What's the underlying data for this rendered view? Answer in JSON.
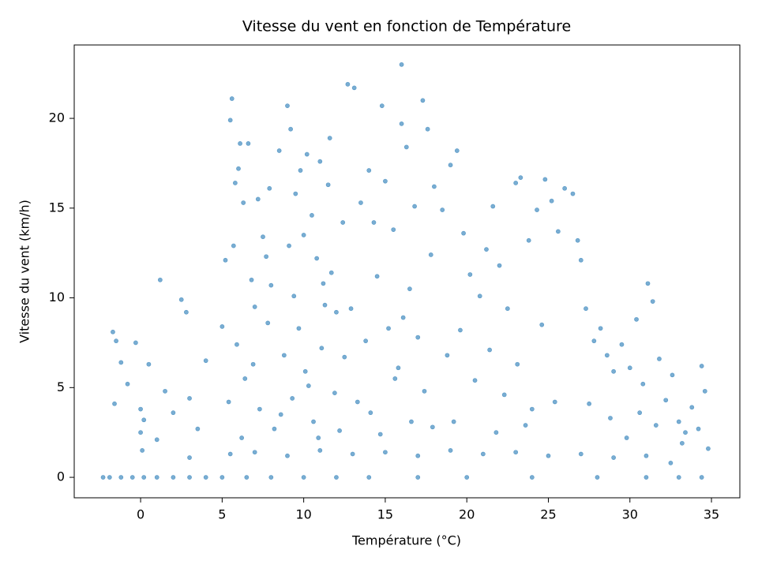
{
  "chart_data": {
    "type": "scatter",
    "title": "Vitesse du vent en fonction de Température",
    "x_label": "Température (°C)",
    "y_label": "Vitesse du vent (km/h)",
    "color": "#1f77b4",
    "grid": false,
    "xlim": [
      -4.07,
      36.74
    ],
    "ylim": [
      -1.14,
      24.09
    ],
    "xticks": [
      0,
      5,
      10,
      15,
      20,
      25,
      30,
      35
    ],
    "yticks": [
      0,
      5,
      10,
      15,
      20
    ],
    "x": [
      -2.3,
      -1.9,
      -1.2,
      -0.5,
      0.2,
      1,
      2,
      3,
      4,
      5,
      6.5,
      8,
      10,
      12,
      14,
      17,
      20,
      24,
      28,
      31,
      33,
      34.4,
      5.5,
      7,
      9,
      11,
      13,
      15,
      17,
      19,
      21,
      23,
      25,
      27,
      29,
      31,
      32.5,
      3,
      -1.7,
      -1.5,
      -1.2,
      -0.8,
      -0.3,
      0,
      0,
      0.2,
      0.5,
      1,
      1.2,
      1.5,
      2,
      2.5,
      3,
      3.5,
      4,
      -1.6,
      0.1,
      2.8,
      5.2,
      5.5,
      5.6,
      5.7,
      5.8,
      6,
      6.1,
      6.3,
      6.6,
      6.8,
      7,
      7.2,
      7.5,
      7.8,
      8,
      5.9,
      6.4,
      7.3,
      5.4,
      6.9,
      7.7,
      8.2,
      5,
      6.2,
      7.9,
      8.5,
      9,
      9.2,
      9.5,
      9.8,
      10,
      10.2,
      10.5,
      10.8,
      11,
      11.2,
      11.5,
      11.6,
      12,
      8.8,
      9.3,
      9.7,
      10.1,
      10.6,
      11.1,
      11.7,
      12.2,
      8.6,
      9.4,
      10.3,
      11.3,
      11.9,
      9.1,
      10.9,
      12.4,
      12.7,
      13.1,
      13.5,
      14,
      14.3,
      14.8,
      15,
      15.5,
      16,
      16,
      16.3,
      16.8,
      17.3,
      17.6,
      18,
      12.9,
      13.8,
      14.5,
      15.2,
      15.8,
      16.5,
      17,
      17.8,
      13.3,
      14.1,
      15.6,
      16.6,
      17.4,
      12.5,
      14.7,
      16.1,
      17.9,
      18.5,
      19,
      19.4,
      19.8,
      20.2,
      20.8,
      21.2,
      21.6,
      22,
      22.5,
      23,
      23.3,
      23.8,
      24.3,
      24.8,
      25.2,
      25.6,
      26,
      18.8,
      19.6,
      20.5,
      21.4,
      22.3,
      23.1,
      24,
      24.6,
      25.4,
      19.2,
      21.8,
      23.6,
      26.5,
      26.8,
      27,
      27.3,
      27.8,
      28.2,
      28.6,
      29,
      29.5,
      30,
      30.4,
      30.8,
      31.1,
      31.4,
      31.8,
      32.2,
      32.6,
      33,
      33.4,
      33.8,
      34.2,
      34.4,
      34.6,
      34.8,
      27.5,
      28.8,
      29.8,
      30.6,
      31.6,
      33.2
    ],
    "values": [
      0,
      0,
      0,
      0,
      0,
      0,
      0,
      0,
      0,
      0,
      0,
      0,
      0,
      0,
      0,
      0,
      0,
      0,
      0,
      0,
      0,
      0,
      1.3,
      1.4,
      1.2,
      1.5,
      1.3,
      1.4,
      1.2,
      1.5,
      1.3,
      1.4,
      1.2,
      1.3,
      1.1,
      1.2,
      0.8,
      1.1,
      8.1,
      7.6,
      6.4,
      5.2,
      7.5,
      3.8,
      2.5,
      3.2,
      6.3,
      2.1,
      11,
      4.8,
      3.6,
      9.9,
      4.4,
      2.7,
      6.5,
      4.1,
      1.5,
      9.2,
      12.1,
      19.9,
      21.1,
      12.9,
      16.4,
      17.2,
      18.6,
      15.3,
      18.6,
      11,
      9.5,
      15.5,
      13.4,
      8.6,
      10.7,
      7.4,
      5.5,
      3.8,
      4.2,
      6.3,
      12.3,
      2.7,
      8.4,
      2.2,
      16.1,
      18.2,
      20.7,
      19.4,
      15.8,
      17.1,
      13.5,
      18,
      14.6,
      12.2,
      17.6,
      10.8,
      16.3,
      18.9,
      9.2,
      6.8,
      4.4,
      8.3,
      5.9,
      3.1,
      7.2,
      11.4,
      2.6,
      3.5,
      10.1,
      5.1,
      9.6,
      4.7,
      12.9,
      2.2,
      14.2,
      21.9,
      21.7,
      15.3,
      17.1,
      14.2,
      20.7,
      16.5,
      13.8,
      23,
      19.7,
      18.4,
      15.1,
      21,
      19.4,
      16.2,
      9.4,
      7.6,
      11.2,
      8.3,
      6.1,
      10.5,
      7.8,
      12.4,
      4.2,
      3.6,
      5.5,
      3.1,
      4.8,
      6.7,
      2.4,
      8.9,
      2.8,
      14.9,
      17.4,
      18.2,
      13.6,
      11.3,
      10.1,
      12.7,
      15.1,
      11.8,
      9.4,
      16.4,
      16.7,
      13.2,
      14.9,
      16.6,
      15.4,
      13.7,
      16.1,
      6.8,
      8.2,
      5.4,
      7.1,
      4.6,
      6.3,
      3.8,
      8.5,
      4.2,
      3.1,
      2.5,
      2.9,
      15.8,
      13.2,
      12.1,
      9.4,
      7.6,
      8.3,
      6.8,
      5.9,
      7.4,
      6.1,
      8.8,
      5.2,
      10.8,
      9.8,
      6.6,
      4.3,
      5.7,
      3.1,
      2.5,
      3.9,
      2.7,
      6.2,
      4.8,
      1.6,
      4.1,
      3.3,
      2.2,
      3.6,
      2.9,
      1.9
    ]
  }
}
